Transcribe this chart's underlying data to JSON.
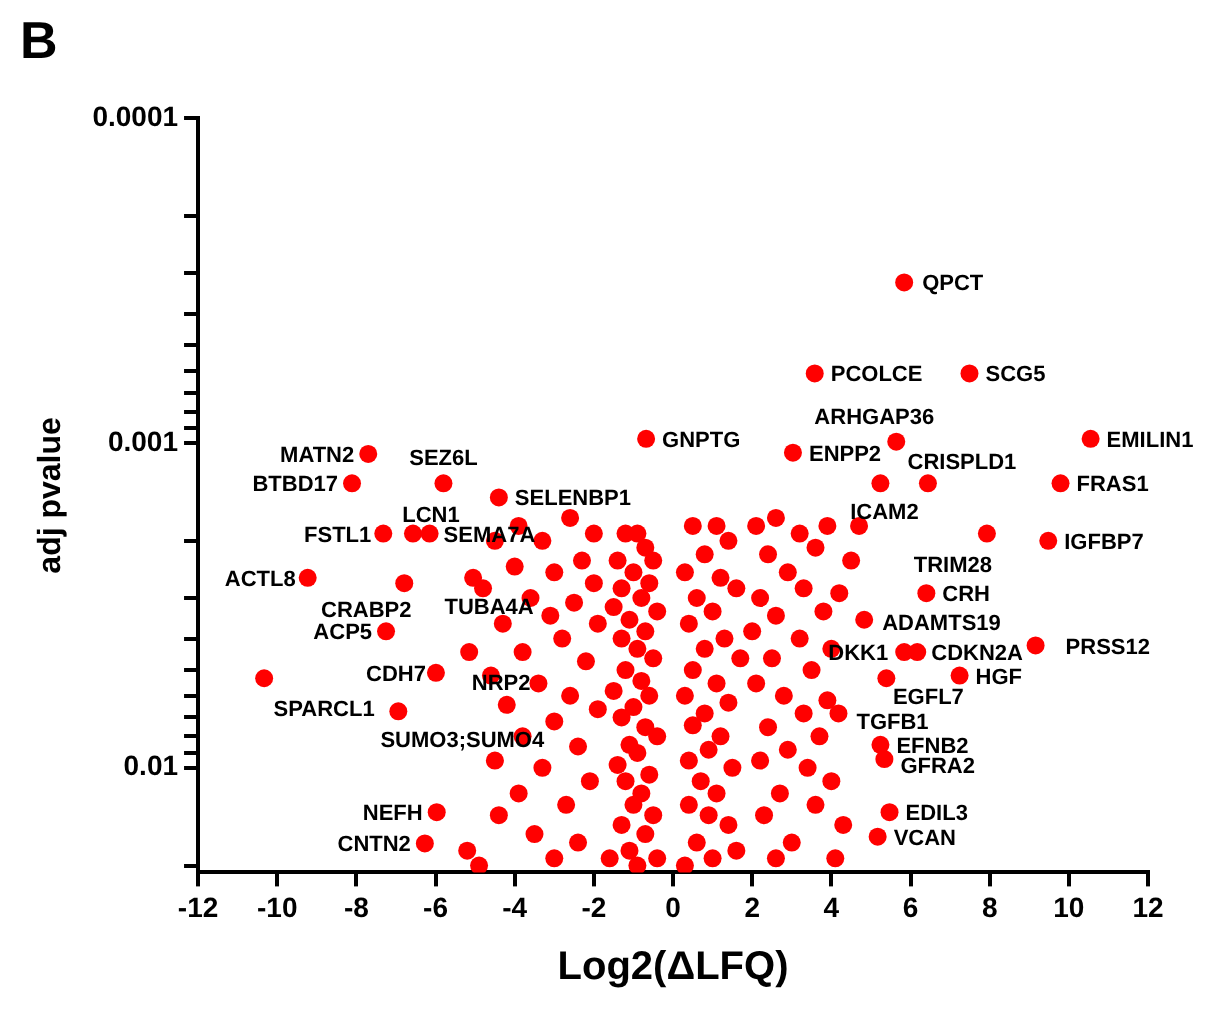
{
  "chart_data": {
    "type": "scatter",
    "title": "B",
    "xlabel": "Log2(ΔLFQ)",
    "ylabel": "adj pvalue",
    "color": "#ff0000",
    "marker": "circle",
    "grid": false,
    "legend": false,
    "log": "y",
    "xlim": [
      -12,
      12
    ],
    "xticks": [
      -12,
      -10,
      -8,
      -6,
      -4,
      -2,
      0,
      2,
      4,
      6,
      8,
      10,
      12
    ],
    "ylim": [
      0.021,
      0.0001
    ],
    "yticks": [
      0.0001,
      {
        "value": 0.0002,
        "label": null
      },
      {
        "value": 0.0003,
        "label": null
      },
      {
        "value": 0.0004,
        "label": null
      },
      {
        "value": 0.0005,
        "label": null
      },
      {
        "value": 0.0006,
        "label": null
      },
      {
        "value": 0.0007,
        "label": null
      },
      {
        "value": 0.0008,
        "label": null
      },
      {
        "value": 0.0009,
        "label": null
      },
      0.001,
      {
        "value": 0.002,
        "label": null
      },
      {
        "value": 0.003,
        "label": null
      },
      {
        "value": 0.004,
        "label": null
      },
      {
        "value": 0.005,
        "label": null
      },
      {
        "value": 0.006,
        "label": null
      },
      {
        "value": 0.007,
        "label": null
      },
      {
        "value": 0.008,
        "label": null
      },
      {
        "value": 0.009,
        "label": null
      },
      0.01,
      {
        "value": 0.02,
        "label": null
      }
    ],
    "x": [
      5.84,
      3.58,
      7.49,
      5.64,
      -0.68,
      3.03,
      10.55,
      -7.7,
      -8.11,
      -5.8,
      6.44,
      9.79,
      5.24,
      -4.4,
      -6.57,
      -7.32,
      -6.15,
      9.48,
      7.93,
      -9.23,
      -6.79,
      -5.05,
      6.4,
      4.83,
      -7.25,
      9.16,
      5.84,
      6.17,
      -5.99,
      -5.15,
      -10.33,
      7.24,
      5.39,
      -6.94,
      4.18,
      5.24,
      5.34,
      5.47,
      -5.97,
      5.17,
      -6.27,
      -1.2,
      -0.9,
      -0.7,
      -1.4,
      -0.5,
      -1.0,
      -0.6,
      -1.3,
      -0.8,
      -1.5,
      -0.4,
      -1.1,
      -0.7,
      -1.3,
      -0.9,
      -0.5,
      -1.2,
      -0.8,
      -1.5,
      -0.6,
      -1.0,
      -1.3,
      -0.7,
      -0.4,
      -1.1,
      -0.9,
      -1.4,
      -0.6,
      -1.2,
      -0.8,
      -1.0,
      -0.5,
      -1.3,
      -0.7,
      -1.1,
      -0.9,
      -1.6,
      -0.4,
      0.5,
      1.1,
      1.4,
      0.8,
      0.3,
      1.2,
      1.6,
      0.6,
      1.0,
      0.4,
      1.3,
      0.8,
      1.7,
      0.5,
      1.1,
      0.3,
      1.4,
      0.8,
      0.5,
      1.2,
      0.9,
      0.4,
      1.5,
      0.7,
      1.1,
      0.4,
      0.9,
      1.4,
      0.6,
      1.0,
      0.3,
      1.6,
      -3.9,
      -2.6,
      -2.0,
      -4.5,
      -3.3,
      -2.3,
      -4.0,
      -3.0,
      -2.0,
      -3.6,
      -4.8,
      -2.5,
      -3.1,
      -1.9,
      -4.3,
      -2.8,
      -3.8,
      -2.2,
      -4.6,
      -3.4,
      -2.6,
      -4.2,
      -1.9,
      -3.0,
      -3.8,
      -2.4,
      -4.5,
      -3.3,
      -2.1,
      -3.9,
      -2.7,
      -4.4,
      -3.5,
      -5.2,
      -2.4,
      -4.9,
      -3.0,
      2.1,
      2.6,
      3.2,
      3.9,
      4.7,
      2.4,
      3.6,
      4.5,
      2.9,
      3.3,
      4.2,
      2.2,
      2.6,
      3.8,
      2.0,
      3.2,
      4.0,
      2.5,
      3.5,
      2.1,
      2.8,
      3.9,
      3.3,
      2.4,
      3.7,
      2.9,
      2.2,
      3.4,
      4.0,
      2.7,
      3.6,
      2.3,
      4.3,
      3.0,
      2.6,
      4.1
    ],
    "values": [
      0.00032,
      0.00061,
      0.00061,
      0.00099,
      0.00097,
      0.00107,
      0.00097,
      0.00108,
      0.00133,
      0.00133,
      0.00133,
      0.00133,
      0.00133,
      0.00147,
      0.0019,
      0.0019,
      0.0019,
      0.002,
      0.0019,
      0.0026,
      0.0027,
      0.0026,
      0.0029,
      0.0035,
      0.0038,
      0.0042,
      0.0044,
      0.0044,
      0.0051,
      0.0044,
      0.0053,
      0.0052,
      0.0053,
      0.0067,
      0.0068,
      0.0085,
      0.0094,
      0.0137,
      0.0137,
      0.0163,
      0.0171,
      0.0019,
      0.0019,
      0.0021,
      0.0023,
      0.0023,
      0.0025,
      0.0027,
      0.0028,
      0.003,
      0.0032,
      0.0033,
      0.0035,
      0.0038,
      0.004,
      0.0043,
      0.0046,
      0.005,
      0.0054,
      0.0058,
      0.006,
      0.0065,
      0.007,
      0.0075,
      0.008,
      0.0085,
      0.009,
      0.0098,
      0.0105,
      0.011,
      0.012,
      0.013,
      0.014,
      0.015,
      0.016,
      0.018,
      0.02,
      0.019,
      0.019,
      0.0018,
      0.0018,
      0.002,
      0.0022,
      0.0025,
      0.0026,
      0.0028,
      0.003,
      0.0033,
      0.0036,
      0.004,
      0.0043,
      0.0046,
      0.005,
      0.0055,
      0.006,
      0.0063,
      0.0068,
      0.0074,
      0.008,
      0.0088,
      0.0095,
      0.01,
      0.011,
      0.012,
      0.013,
      0.014,
      0.015,
      0.017,
      0.019,
      0.02,
      0.018,
      0.0018,
      0.0017,
      0.0019,
      0.002,
      0.002,
      0.0023,
      0.0024,
      0.0025,
      0.0027,
      0.003,
      0.0028,
      0.0031,
      0.0034,
      0.0036,
      0.0036,
      0.004,
      0.0044,
      0.0047,
      0.0052,
      0.0055,
      0.006,
      0.0064,
      0.0066,
      0.0072,
      0.008,
      0.0086,
      0.0095,
      0.01,
      0.011,
      0.012,
      0.013,
      0.014,
      0.016,
      0.018,
      0.017,
      0.02,
      0.019,
      0.0018,
      0.0017,
      0.0019,
      0.0018,
      0.0018,
      0.0022,
      0.0021,
      0.0023,
      0.0025,
      0.0028,
      0.0029,
      0.003,
      0.0034,
      0.0033,
      0.0038,
      0.004,
      0.0043,
      0.0046,
      0.005,
      0.0055,
      0.006,
      0.0062,
      0.0068,
      0.0075,
      0.008,
      0.0088,
      0.0095,
      0.01,
      0.011,
      0.012,
      0.013,
      0.014,
      0.015,
      0.017,
      0.019,
      0.019
    ],
    "annotations": [
      {
        "text": "QPCT",
        "x": 5.84,
        "y": 0.00032
      },
      {
        "text": "PCOLCE",
        "x": 3.58,
        "y": 0.00061
      },
      {
        "text": "SCG5",
        "x": 7.49,
        "y": 0.00061
      },
      {
        "text": "ARHGAP36",
        "x": 5.64,
        "y": 0.00099
      },
      {
        "text": "GNPTG",
        "x": -0.68,
        "y": 0.00097
      },
      {
        "text": "ENPP2",
        "x": 3.03,
        "y": 0.00107
      },
      {
        "text": "EMILIN1",
        "x": 10.55,
        "y": 0.00097
      },
      {
        "text": "MATN2",
        "x": -7.7,
        "y": 0.00108
      },
      {
        "text": "BTBD17",
        "x": -8.11,
        "y": 0.00133
      },
      {
        "text": "SEZ6L",
        "x": -5.8,
        "y": 0.00133
      },
      {
        "text": "CRISPLD1",
        "x": 6.44,
        "y": 0.00133
      },
      {
        "text": "FRAS1",
        "x": 9.79,
        "y": 0.00133
      },
      {
        "text": "ICAM2",
        "x": 5.24,
        "y": 0.00133
      },
      {
        "text": "SELENBP1",
        "x": -4.4,
        "y": 0.00147
      },
      {
        "text": "LCN1",
        "x": -6.57,
        "y": 0.0019
      },
      {
        "text": "FSTL1",
        "x": -7.32,
        "y": 0.0019
      },
      {
        "text": "SEMA7A",
        "x": -6.15,
        "y": 0.0019
      },
      {
        "text": "IGFBP7",
        "x": 9.48,
        "y": 0.002
      },
      {
        "text": "TRIM28",
        "x": 7.93,
        "y": 0.0019
      },
      {
        "text": "ACTL8",
        "x": -9.23,
        "y": 0.0026
      },
      {
        "text": "CRABP2",
        "x": -6.79,
        "y": 0.0027
      },
      {
        "text": "TUBA4A",
        "x": -5.05,
        "y": 0.0026
      },
      {
        "text": "CRH",
        "x": 6.4,
        "y": 0.0029
      },
      {
        "text": "ADAMTS19",
        "x": 4.83,
        "y": 0.0035
      },
      {
        "text": "ACP5",
        "x": -7.25,
        "y": 0.0038
      },
      {
        "text": "PRSS12",
        "x": 9.16,
        "y": 0.0042
      },
      {
        "text": "DKK1",
        "x": 5.84,
        "y": 0.0044
      },
      {
        "text": "CDKN2A",
        "x": 6.17,
        "y": 0.0044
      },
      {
        "text": "CDH7",
        "x": -5.99,
        "y": 0.0051
      },
      {
        "text": "NRP2",
        "x": -5.15,
        "y": 0.0044
      },
      {
        "text": "SPARCL1",
        "x": -10.33,
        "y": 0.0053
      },
      {
        "text": "HGF",
        "x": 7.24,
        "y": 0.0052
      },
      {
        "text": "EGFL7",
        "x": 5.39,
        "y": 0.0053
      },
      {
        "text": "SUMO3;SUMO4",
        "x": -6.94,
        "y": 0.0067
      },
      {
        "text": "TGFB1",
        "x": 4.18,
        "y": 0.0068
      },
      {
        "text": "EFNB2",
        "x": 5.24,
        "y": 0.0085
      },
      {
        "text": "GFRA2",
        "x": 5.34,
        "y": 0.0094
      },
      {
        "text": "EDIL3",
        "x": 5.47,
        "y": 0.0137
      },
      {
        "text": "NEFH",
        "x": -5.97,
        "y": 0.0137
      },
      {
        "text": "VCAN",
        "x": 5.17,
        "y": 0.0163
      },
      {
        "text": "CNTN2",
        "x": -6.27,
        "y": 0.0171
      }
    ]
  }
}
